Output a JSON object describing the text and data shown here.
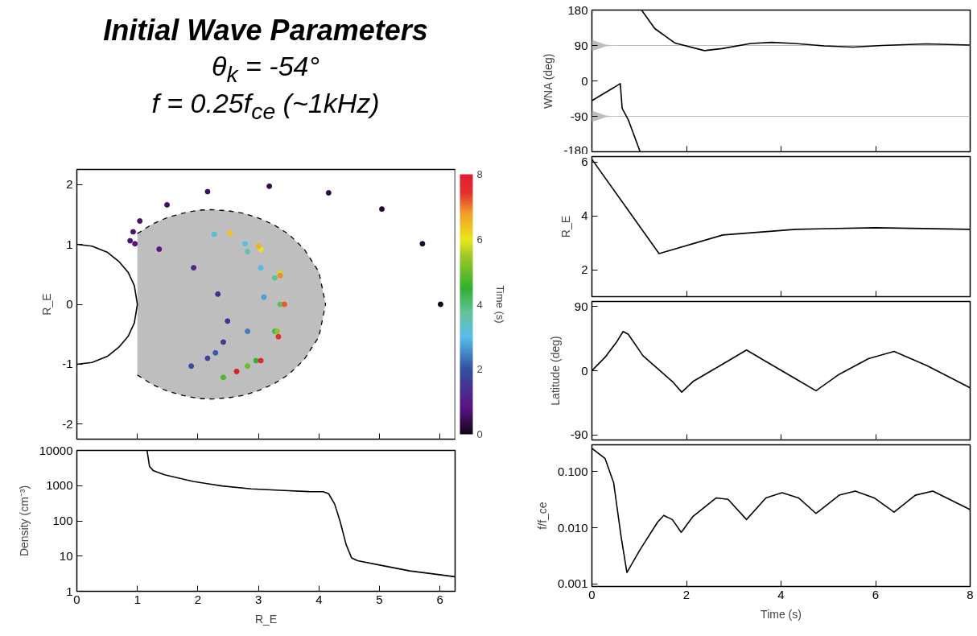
{
  "chart_data": [
    {
      "type": "line",
      "title": "Initial Wave Parameters",
      "subtitle": "θ$_{k}$ = -54°\nf = 0.25f$_{ce}$ (~1kHz)",
      "xlim": [
        0,
        6.25
      ],
      "ylim": [
        -2.25,
        2.25
      ],
      "xticks": [
        0,
        1,
        2,
        3,
        4,
        5,
        6
      ],
      "yticks": [
        -2,
        -1,
        0,
        1,
        2
      ],
      "tick_labels": "y",
      "ylabel": "R_E",
      "clabel": "Time (s)",
      "clim": [
        0,
        8
      ],
      "cticks": [
        0,
        2,
        4,
        6,
        8
      ],
      "series": [
        {
          "type": "area",
          "color": "#bebebe",
          "line_style": "dashed",
          "x": [
            1,
            1.25,
            1.5,
            1.75,
            2,
            2.24,
            2.5,
            2.75,
            3,
            3.25,
            3.5,
            3.75,
            4,
            4.11
          ],
          "values": [
            1.18,
            1.34,
            1.45,
            1.52,
            1.57,
            1.58,
            1.56,
            1.52,
            1.44,
            1.33,
            1.17,
            0.93,
            0.54,
            0
          ]
        },
        {
          "type": "area",
          "color": "#bebebe",
          "line_style": "dashed",
          "x": [
            1,
            1.25,
            1.5,
            1.75,
            2,
            2.24,
            2.5,
            2.75,
            3,
            3.25,
            3.5,
            3.75,
            4,
            4.11
          ],
          "values": [
            -1.18,
            -1.34,
            -1.45,
            -1.52,
            -1.57,
            -1.58,
            -1.56,
            -1.52,
            -1.44,
            -1.33,
            -1.17,
            -0.93,
            -0.54,
            0
          ]
        },
        {
          "type": "line",
          "color": "#000000",
          "line_style": "solid",
          "x": [
            0,
            0.25,
            0.5,
            0.7,
            0.85,
            0.95,
            1,
            0.95,
            0.85,
            0.7,
            0.5,
            0.25,
            0
          ],
          "values": [
            1,
            0.97,
            0.87,
            0.71,
            0.53,
            0.31,
            0,
            -0.31,
            -0.53,
            -0.71,
            -0.87,
            -0.97,
            -1
          ]
        },
        {
          "type": "scatter",
          "marker": "circle",
          "colors": [
            "#140519",
            "#1d0726",
            "#250933",
            "#2e0b40",
            "#370c4d",
            "#400e5a",
            "#450f61",
            "#481067",
            "#4d116e",
            "#511274",
            "#56137b",
            "#571984",
            "#50238a",
            "#492d8e",
            "#443491",
            "#3f3c96",
            "#3a4399",
            "#354b9e",
            "#365ba8",
            "#427cbe",
            "#4e9dd5",
            "#58b9e7",
            "#5bbfe0",
            "#5dc0cf",
            "#61c1b3",
            "#61c290",
            "#53bc75",
            "#42b554",
            "#34b032",
            "#4eb62f",
            "#68bd2d",
            "#87c429",
            "#a7ce26",
            "#ccdd22",
            "#ebe21f",
            "#edc722",
            "#efb226",
            "#ee8f29",
            "#e75b2b",
            "#e1302e",
            "#e12730",
            "#e11e32"
          ],
          "x": [
            6.01,
            5.71,
            5.04,
            4.16,
            3.18,
            2.16,
            1.49,
            1.04,
            0.93,
            0.88,
            0.96,
            1.36,
            1.93,
            2.33,
            2.49,
            2.42,
            2.16,
            1.89,
            2.29,
            2.82,
            3.09,
            3.04,
            2.78,
            2.27,
            2.82,
            3.27,
            3.36,
            3.27,
            2.96,
            2.42,
            2.82,
            3.31,
            3.42,
            3.36,
            3.04,
            2.53,
            3.0,
            3.36,
            3.43,
            3.33,
            3.04,
            2.64
          ],
          "values": [
            0,
            1.01,
            1.59,
            1.86,
            1.97,
            1.88,
            1.66,
            1.39,
            1.21,
            1.06,
            1.01,
            0.92,
            0.61,
            0.17,
            -0.28,
            -0.63,
            -0.9,
            -1.03,
            -0.81,
            -0.45,
            0.12,
            0.61,
            1.01,
            1.17,
            0.88,
            0.44,
            0,
            -0.45,
            -0.94,
            -1.22,
            -1.03,
            -0.45,
            0,
            0.52,
            0.92,
            1.19,
            0.97,
            0.48,
            0,
            -0.54,
            -0.94,
            -1.12
          ],
          "cvalues": [
            0,
            0.1,
            0.2,
            0.3,
            0.4,
            0.5,
            0.55,
            0.6,
            0.65,
            0.7,
            0.75,
            0.9,
            1.1,
            1.3,
            1.45,
            1.6,
            1.75,
            1.9,
            2.1,
            2.4,
            2.7,
            2.95,
            3.1,
            3.25,
            3.5,
            3.8,
            4.0,
            4.25,
            4.5,
            4.75,
            5.0,
            5.3,
            5.55,
            5.8,
            6.05,
            6.35,
            6.6,
            6.9,
            7.2,
            7.5,
            7.75,
            8.0
          ]
        }
      ]
    },
    {
      "type": "line",
      "log": true,
      "xlim": [
        0,
        6.25
      ],
      "ylim": [
        1,
        10000
      ],
      "xticks": [
        0,
        1,
        2,
        3,
        4,
        5,
        6
      ],
      "yticks": [
        1,
        10,
        100,
        1000,
        10000
      ],
      "xlabel": "R_E",
      "ylabel": "Density (cm⁻³)",
      "series": [
        {
          "color": "#000000",
          "x": [
            1.16,
            1.2,
            1.26,
            1.45,
            1.92,
            2.4,
            2.88,
            3.35,
            3.83,
            4.07,
            4.16,
            4.26,
            4.35,
            4.45,
            4.54,
            4.64,
            5.02,
            5.5,
            6.25
          ],
          "values": [
            10000,
            3550,
            2700,
            2040,
            1320,
            980,
            810,
            740,
            680,
            675,
            590,
            300,
            96,
            21,
            8.9,
            7.4,
            5.5,
            3.8,
            2.6
          ]
        }
      ]
    },
    {
      "type": "line",
      "xlim": [
        0,
        8
      ],
      "ylim": [
        -180,
        180
      ],
      "xticks": [
        0,
        2,
        4,
        6,
        8
      ],
      "yticks": [
        -180,
        -90,
        0,
        90,
        180
      ],
      "tick_labels": "y",
      "ylabel": "WNA (deg)",
      "series": [
        {
          "color": "#bebebe",
          "x": [
            0,
            0.1,
            0.2,
            0.3,
            0.46,
            8
          ],
          "values": [
            90,
            90,
            90,
            90,
            90,
            90
          ],
          "lower": [
            76,
            80,
            84,
            88,
            90,
            90
          ],
          "upper": [
            104,
            100,
            96,
            92,
            90,
            90
          ]
        },
        {
          "color": "#bebebe",
          "x": [
            0,
            0.1,
            0.2,
            0.3,
            0.46,
            8
          ],
          "values": [
            -90,
            -90,
            -90,
            -90,
            -90,
            -90
          ],
          "lower": [
            -104,
            -100,
            -96,
            -92,
            -90,
            -90
          ],
          "upper": [
            -76,
            -80,
            -84,
            -88,
            -90,
            -90
          ]
        },
        {
          "color": "#000000",
          "x": [
            0,
            0.6,
            0.64,
            0.77,
            1.02,
            1.03,
            1.05,
            1.33,
            1.76,
            2.38,
            2.75,
            3.36,
            3.8,
            4.29,
            4.91,
            5.52,
            6.14,
            7.07,
            8
          ],
          "values": [
            -50,
            -7,
            -70,
            -99,
            -180,
            null,
            180,
            133,
            96,
            77,
            82,
            95,
            98,
            95,
            89,
            86,
            90,
            94,
            91
          ]
        }
      ]
    },
    {
      "type": "line",
      "xlim": [
        0,
        8
      ],
      "ylim": [
        1,
        6.2
      ],
      "xticks": [
        0,
        2,
        4,
        6,
        8
      ],
      "yticks": [
        2,
        4,
        6
      ],
      "tick_labels": "y",
      "ylabel": "R_E",
      "series": [
        {
          "color": "#000000",
          "x": [
            0,
            1.42,
            2.77,
            4.31,
            6.0,
            8
          ],
          "values": [
            6.1,
            2.6,
            3.29,
            3.5,
            3.56,
            3.5
          ]
        }
      ]
    },
    {
      "type": "line",
      "xlim": [
        0,
        8
      ],
      "ylim": [
        -97,
        97
      ],
      "xticks": [
        0,
        2,
        4,
        6,
        8
      ],
      "yticks": [
        -90,
        0,
        90
      ],
      "tick_labels": "y",
      "ylabel": "Latitude (deg)",
      "series": [
        {
          "color": "#000000",
          "x": [
            0,
            0.28,
            0.53,
            0.66,
            0.77,
            1.08,
            1.39,
            1.7,
            1.9,
            2.14,
            2.76,
            3.27,
            3.68,
            4.3,
            4.74,
            5.23,
            5.85,
            6.39,
            7.09,
            8
          ],
          "values": [
            0,
            19,
            41,
            55,
            51,
            21,
            3,
            -15,
            -30,
            -15,
            9,
            29,
            13,
            -11,
            -28,
            -5,
            17,
            27,
            7,
            -24
          ]
        }
      ]
    },
    {
      "type": "line",
      "log": true,
      "xlim": [
        0,
        8
      ],
      "ylim": [
        0.0009,
        0.3
      ],
      "xticks": [
        0,
        2,
        4,
        6,
        8
      ],
      "yticks": [
        0.001,
        {
          "value": 0.01,
          "label": "0.010"
        },
        {
          "value": 0.1,
          "label": "0.100"
        }
      ],
      "xlabel": "Time (s)",
      "ylabel": "f/f_ce",
      "series": [
        {
          "color": "#000000",
          "x": [
            0,
            0.28,
            0.46,
            0.62,
            0.74,
            1.02,
            1.39,
            1.52,
            1.7,
            1.89,
            2.14,
            2.63,
            2.88,
            3.27,
            3.68,
            4.02,
            4.37,
            4.74,
            5.23,
            5.57,
            5.97,
            6.39,
            6.84,
            7.21,
            8
          ],
          "values": [
            0.26,
            0.17,
            0.063,
            0.0067,
            0.0016,
            0.0041,
            0.0126,
            0.0166,
            0.014,
            0.0083,
            0.016,
            0.034,
            0.032,
            0.014,
            0.034,
            0.042,
            0.034,
            0.018,
            0.038,
            0.045,
            0.034,
            0.019,
            0.038,
            0.045,
            0.021
          ]
        }
      ]
    }
  ]
}
